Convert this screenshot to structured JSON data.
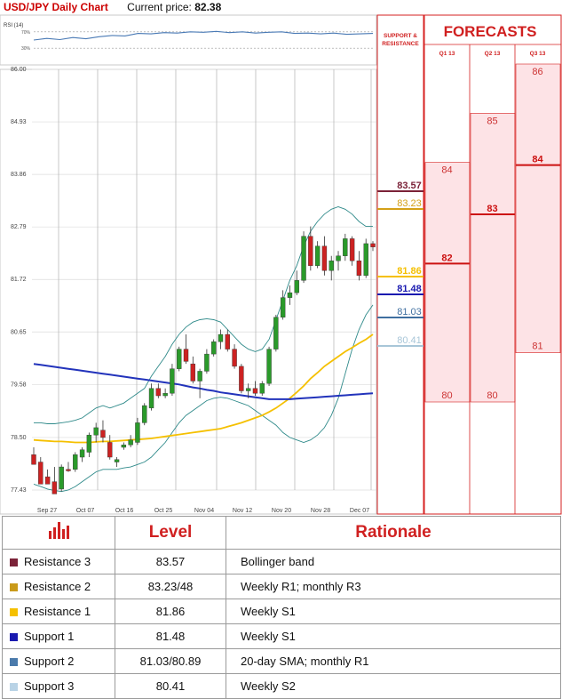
{
  "header": {
    "pair_title": "USD/JPY Daily Chart",
    "price_label": "Current price:",
    "price_value": "82.38"
  },
  "rsi": {
    "label": "RSI (14)",
    "levels": [
      "70%",
      "30%"
    ],
    "values": [
      50,
      54,
      51,
      56,
      53,
      58,
      61,
      60,
      66,
      65,
      68,
      67,
      70,
      69,
      71,
      68,
      70,
      67,
      69,
      70,
      66,
      67,
      65,
      67,
      64,
      65,
      66
    ]
  },
  "chart_data": {
    "type": "candlestick",
    "title": "USD/JPY Daily Chart",
    "x_tick_labels": [
      "Sep 27",
      "Oct 07",
      "Oct 16",
      "Oct 25",
      "Nov 04",
      "Nov 12",
      "Nov 20",
      "Nov 28",
      "Dec 07"
    ],
    "y_tick_labels": [
      "86.00",
      "84.93",
      "83.86",
      "82.79",
      "81.72",
      "80.65",
      "79.58",
      "78.50",
      "77.43"
    ],
    "ylim": [
      77.43,
      86.0
    ],
    "candles": [
      [
        78.15,
        78.3,
        78.0,
        77.95
      ],
      [
        78.0,
        78.1,
        77.6,
        77.55
      ],
      [
        77.7,
        77.85,
        77.6,
        77.55
      ],
      [
        77.6,
        77.9,
        77.4,
        77.35
      ],
      [
        77.45,
        77.95,
        77.4,
        77.9
      ],
      [
        77.85,
        78.0,
        77.8,
        77.82
      ],
      [
        77.85,
        78.2,
        77.8,
        78.15
      ],
      [
        78.1,
        78.3,
        78.0,
        78.25
      ],
      [
        78.2,
        78.6,
        78.1,
        78.55
      ],
      [
        78.55,
        78.8,
        78.4,
        78.7
      ],
      [
        78.65,
        78.85,
        78.4,
        78.5
      ],
      [
        78.4,
        78.55,
        78.05,
        78.1
      ],
      [
        78.0,
        78.1,
        77.9,
        78.05
      ],
      [
        78.3,
        78.4,
        78.25,
        78.35
      ],
      [
        78.35,
        78.55,
        78.3,
        78.45
      ],
      [
        78.4,
        78.9,
        78.35,
        78.8
      ],
      [
        78.8,
        79.2,
        78.75,
        79.15
      ],
      [
        79.1,
        79.6,
        79.05,
        79.5
      ],
      [
        79.5,
        79.6,
        79.3,
        79.35
      ],
      [
        79.35,
        79.5,
        79.3,
        79.4
      ],
      [
        79.4,
        80.0,
        79.35,
        79.9
      ],
      [
        79.9,
        80.35,
        79.85,
        80.3
      ],
      [
        80.3,
        80.6,
        80.0,
        80.05
      ],
      [
        80.0,
        80.15,
        79.6,
        79.65
      ],
      [
        79.65,
        79.9,
        79.3,
        79.85
      ],
      [
        79.85,
        80.3,
        79.8,
        80.2
      ],
      [
        80.2,
        80.5,
        80.15,
        80.45
      ],
      [
        80.45,
        80.7,
        80.3,
        80.6
      ],
      [
        80.6,
        80.7,
        80.25,
        80.3
      ],
      [
        80.3,
        80.4,
        79.9,
        79.95
      ],
      [
        79.95,
        80.0,
        79.4,
        79.45
      ],
      [
        79.45,
        79.6,
        79.3,
        79.5
      ],
      [
        79.5,
        79.65,
        79.35,
        79.4
      ],
      [
        79.4,
        79.65,
        79.35,
        79.6
      ],
      [
        79.6,
        80.35,
        79.55,
        80.3
      ],
      [
        80.3,
        81.0,
        80.25,
        80.95
      ],
      [
        80.95,
        81.5,
        80.9,
        81.35
      ],
      [
        81.35,
        81.6,
        81.2,
        81.45
      ],
      [
        81.45,
        81.9,
        81.4,
        81.7
      ],
      [
        81.7,
        82.7,
        81.65,
        82.6
      ],
      [
        82.6,
        82.8,
        81.9,
        82.0
      ],
      [
        82.0,
        82.5,
        81.95,
        82.4
      ],
      [
        82.4,
        82.6,
        81.8,
        81.9
      ],
      [
        81.9,
        82.2,
        81.7,
        82.1
      ],
      [
        82.1,
        82.3,
        81.9,
        82.2
      ],
      [
        82.2,
        82.65,
        82.1,
        82.55
      ],
      [
        82.55,
        82.6,
        82.0,
        82.1
      ],
      [
        82.1,
        82.3,
        81.7,
        81.8
      ],
      [
        81.8,
        82.55,
        81.75,
        82.45
      ],
      [
        82.45,
        82.5,
        82.3,
        82.38
      ]
    ],
    "sma200": [
      80.0,
      79.98,
      79.96,
      79.94,
      79.92,
      79.9,
      79.88,
      79.86,
      79.84,
      79.82,
      79.8,
      79.78,
      79.76,
      79.74,
      79.72,
      79.7,
      79.68,
      79.66,
      79.64,
      79.62,
      79.6,
      79.58,
      79.55,
      79.52,
      79.5,
      79.47,
      79.45,
      79.42,
      79.4,
      79.38,
      79.36,
      79.34,
      79.32,
      79.3,
      79.28,
      79.28,
      79.28,
      79.28,
      79.29,
      79.3,
      79.31,
      79.32,
      79.33,
      79.34,
      79.35,
      79.36,
      79.37,
      79.38,
      79.39,
      79.4
    ],
    "sma50": [
      78.45,
      78.44,
      78.43,
      78.42,
      78.42,
      78.41,
      78.4,
      78.4,
      78.4,
      78.41,
      78.42,
      78.42,
      78.43,
      78.44,
      78.45,
      78.46,
      78.47,
      78.48,
      78.5,
      78.52,
      78.54,
      78.56,
      78.58,
      78.6,
      78.62,
      78.64,
      78.66,
      78.68,
      78.72,
      78.76,
      78.8,
      78.85,
      78.9,
      78.95,
      79.02,
      79.1,
      79.2,
      79.3,
      79.42,
      79.55,
      79.7,
      79.82,
      79.95,
      80.05,
      80.15,
      80.25,
      80.33,
      80.42,
      80.5,
      80.6
    ],
    "boll_upper": [
      78.8,
      78.8,
      78.78,
      78.78,
      78.8,
      78.82,
      78.85,
      78.9,
      79.0,
      79.1,
      79.15,
      79.1,
      79.15,
      79.2,
      79.3,
      79.4,
      79.5,
      79.75,
      79.95,
      80.15,
      80.4,
      80.6,
      80.75,
      80.85,
      80.9,
      80.92,
      80.9,
      80.85,
      80.7,
      80.55,
      80.4,
      80.3,
      80.25,
      80.3,
      80.5,
      80.9,
      81.3,
      81.7,
      82.0,
      82.4,
      82.7,
      82.9,
      83.05,
      83.15,
      83.2,
      83.15,
      83.05,
      82.9,
      82.8,
      82.8
    ],
    "boll_lower": [
      77.55,
      77.5,
      77.45,
      77.42,
      77.4,
      77.43,
      77.5,
      77.6,
      77.7,
      77.8,
      77.85,
      77.85,
      77.85,
      77.88,
      77.9,
      77.95,
      78.0,
      78.1,
      78.25,
      78.4,
      78.6,
      78.8,
      78.95,
      79.05,
      79.15,
      79.25,
      79.3,
      79.32,
      79.3,
      79.25,
      79.2,
      79.15,
      79.05,
      78.95,
      78.85,
      78.75,
      78.6,
      78.5,
      78.45,
      78.4,
      78.45,
      78.55,
      78.7,
      78.95,
      79.3,
      79.8,
      80.3,
      80.7,
      81.0,
      81.2
    ]
  },
  "support_resistance": {
    "header": "SUPPORT & RESISTANCE",
    "levels": [
      {
        "label": "83.57",
        "value": 83.57,
        "color": "#7b2238"
      },
      {
        "label": "83.23",
        "value": 83.23,
        "color": "#d4a017"
      },
      {
        "label": "81.86",
        "value": 81.86,
        "color": "#f5c000"
      },
      {
        "label": "81.48",
        "value": 81.48,
        "color": "#1a1ab0"
      },
      {
        "label": "81.03",
        "value": 81.03,
        "color": "#3f6fa0"
      },
      {
        "label": "80.41",
        "value": 80.41,
        "color": "#a8c6d8"
      }
    ]
  },
  "forecasts": {
    "title": "FORECASTS",
    "columns": [
      {
        "label": "Q1 13",
        "high": 84,
        "low": 80,
        "mid": 82,
        "high_label": "84",
        "low_label": "80",
        "mid_label": "82"
      },
      {
        "label": "Q2 13",
        "high": 85,
        "low": 80,
        "mid": 83,
        "high_label": "85",
        "low_label": "80",
        "mid_label": "83"
      },
      {
        "label": "Q3 13",
        "high": 86,
        "low": 81,
        "mid": 84,
        "high_label": "86",
        "low_label": "81",
        "mid_label": "84"
      }
    ]
  },
  "table": {
    "headers": [
      "Level",
      "Rationale"
    ],
    "rows": [
      {
        "name": "Resistance 3",
        "level": "83.57",
        "rationale": "Bollinger band",
        "color": "#7b2238"
      },
      {
        "name": "Resistance 2",
        "level": "83.23/48",
        "rationale": "Weekly R1; monthly R3",
        "color": "#c99a1a"
      },
      {
        "name": "Resistance 1",
        "level": "81.86",
        "rationale": "Weekly S1",
        "color": "#f5c000"
      },
      {
        "name": "Support 1",
        "level": "81.48",
        "rationale": "Weekly S1",
        "color": "#1a1ab0"
      },
      {
        "name": "Support 2",
        "level": "81.03/80.89",
        "rationale": "20-day SMA; monthly R1",
        "color": "#4a7aab"
      },
      {
        "name": "Support 3",
        "level": "80.41",
        "rationale": "Weekly S2",
        "color": "#b9d3e6"
      }
    ]
  }
}
